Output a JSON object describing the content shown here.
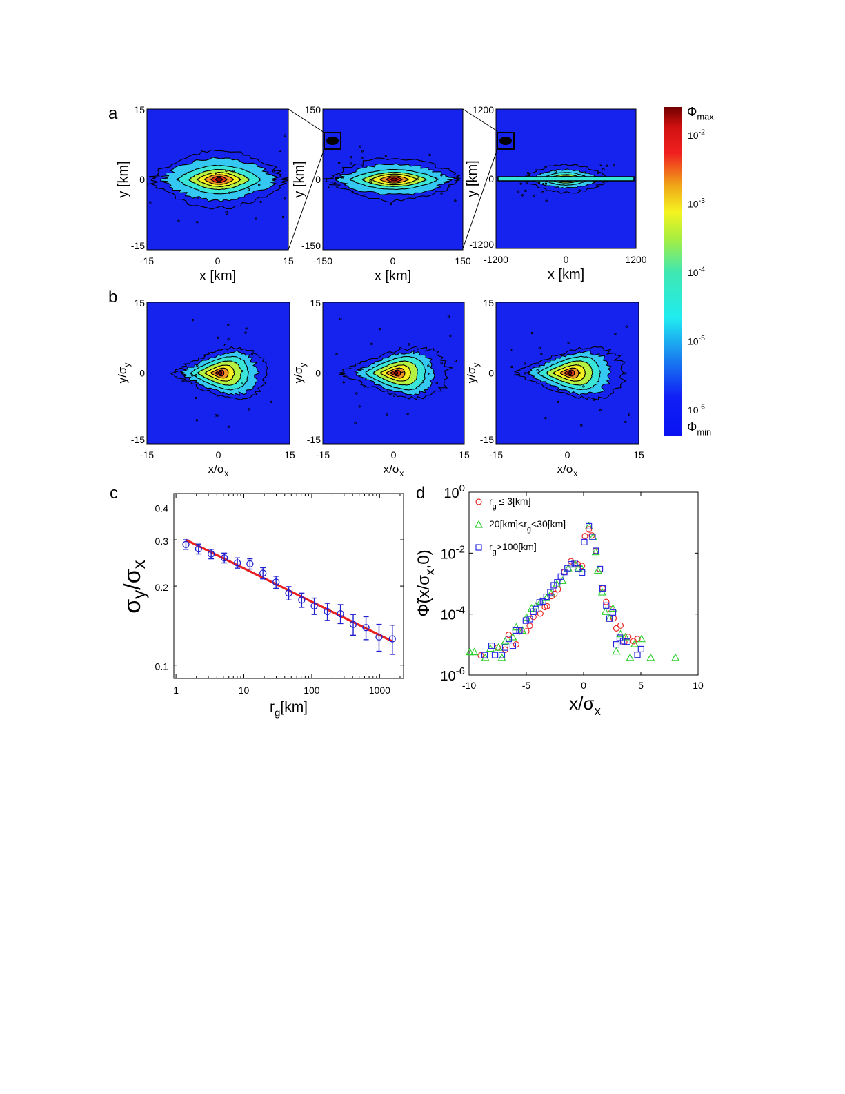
{
  "panel_labels": {
    "a": "a",
    "b": "b",
    "c": "c",
    "d": "d"
  },
  "chart_data": [
    {
      "panel": "a",
      "type": "heatmap",
      "plots": [
        {
          "xlim": [
            -15,
            15
          ],
          "ylim": [
            -15,
            15
          ],
          "xticks": [
            "-15",
            "0",
            "15"
          ],
          "yticks": [
            "15",
            "0",
            "-15"
          ],
          "xlabel": "x [km]",
          "ylabel": "y [km]"
        },
        {
          "xlim": [
            -150,
            150
          ],
          "ylim": [
            -150,
            150
          ],
          "xticks": [
            "-150",
            "0",
            "150"
          ],
          "yticks": [
            "150",
            "0",
            "-150"
          ],
          "xlabel": "x [km]",
          "ylabel": "y [km]",
          "inset": true
        },
        {
          "xlim": [
            -1200,
            1200
          ],
          "ylim": [
            -1200,
            1200
          ],
          "xticks": [
            "-1200",
            "0",
            "1200"
          ],
          "yticks": [
            "1200",
            "0",
            "-1200"
          ],
          "xlabel": "x [km]",
          "ylabel": "y [km]",
          "inset": true
        }
      ]
    },
    {
      "panel": "b",
      "type": "heatmap",
      "plots": [
        {
          "xlim": [
            -15,
            15
          ],
          "ylim": [
            -15,
            15
          ],
          "xticks": [
            "-15",
            "0",
            "15"
          ],
          "yticks": [
            "15",
            "0",
            "-15"
          ],
          "xlabel": {
            "main": "x/σ",
            "sub": "x"
          },
          "ylabel": {
            "main": "y/σ",
            "sub": "y"
          }
        },
        {
          "xlim": [
            -15,
            15
          ],
          "ylim": [
            -15,
            15
          ],
          "xticks": [
            "-15",
            "0",
            "15"
          ],
          "yticks": [
            "15",
            "0",
            "-15"
          ],
          "xlabel": {
            "main": "x/σ",
            "sub": "x"
          },
          "ylabel": {
            "main": "y/σ",
            "sub": "y"
          }
        },
        {
          "xlim": [
            -15,
            15
          ],
          "ylim": [
            -15,
            15
          ],
          "xticks": [
            "-15",
            "0",
            "15"
          ],
          "yticks": [
            "15",
            "0",
            "-15"
          ],
          "xlabel": {
            "main": "x/σ",
            "sub": "x"
          },
          "ylabel": {
            "main": "y/σ",
            "sub": "y"
          }
        }
      ]
    },
    {
      "panel": "colorbar",
      "type": "colorbar",
      "colormap": "jet",
      "scale": "log",
      "max_label": {
        "main": "Φ",
        "sub": "max"
      },
      "min_label": {
        "main": "Φ",
        "sub": "min"
      },
      "ticks": [
        {
          "base": "10",
          "exp": "-2"
        },
        {
          "base": "10",
          "exp": "-3"
        },
        {
          "base": "10",
          "exp": "-4"
        },
        {
          "base": "10",
          "exp": "-5"
        },
        {
          "base": "10",
          "exp": "-6"
        }
      ]
    },
    {
      "panel": "c",
      "type": "scatter",
      "xscale": "log",
      "yscale": "log",
      "xlim": [
        0.93,
        2250
      ],
      "ylim": [
        0.089,
        0.45
      ],
      "xticks": [
        1,
        10,
        100,
        1000
      ],
      "xtick_labels": [
        "1",
        "10",
        "100",
        "1000"
      ],
      "yticks": [
        0.1,
        0.2,
        0.3,
        0.4
      ],
      "ytick_labels": [
        "0.1",
        "0.2",
        "0.3",
        "0.4"
      ],
      "xlabel": {
        "main": "r",
        "sub": "g",
        "rest": "[km]"
      },
      "ylabel": {
        "a": "σ",
        "b": "y",
        "c": "/σ",
        "d": "x"
      },
      "marker_color": "#2020d0",
      "fit_color": "#e82020",
      "x": [
        1.4,
        2.15,
        3.3,
        5.15,
        8.03,
        12.3,
        19.1,
        29.8,
        45.8,
        71.1,
        109,
        170,
        265,
        408,
        630,
        980,
        1540
      ],
      "y": [
        0.288,
        0.277,
        0.265,
        0.256,
        0.245,
        0.243,
        0.224,
        0.207,
        0.188,
        0.177,
        0.168,
        0.16,
        0.157,
        0.143,
        0.139,
        0.128,
        0.126
      ],
      "err": [
        0.012,
        0.012,
        0.011,
        0.011,
        0.011,
        0.011,
        0.011,
        0.011,
        0.011,
        0.011,
        0.012,
        0.012,
        0.013,
        0.013,
        0.014,
        0.015,
        0.016
      ],
      "fit": {
        "x": [
          1.4,
          1560
        ],
        "y": [
          0.3,
          0.123
        ]
      }
    },
    {
      "panel": "d",
      "type": "scatter",
      "yscale": "log",
      "xlim": [
        -10,
        10
      ],
      "ylim": [
        1e-06,
        1
      ],
      "xticks": [
        -10,
        -5,
        0,
        5,
        10
      ],
      "xtick_labels": [
        "-10",
        "-5",
        "0",
        "5",
        "10"
      ],
      "yticks": [
        {
          "value": 1,
          "base": "10",
          "exp": "0"
        },
        {
          "value": 0.01,
          "base": "10",
          "exp": "-2"
        },
        {
          "value": 0.0001,
          "base": "10",
          "exp": "-4"
        },
        {
          "value": 1e-06,
          "base": "10",
          "exp": "-6"
        }
      ],
      "xlabel": {
        "main": "x/σ",
        "sub": "x"
      },
      "ylabel": {
        "main": "Φ̃(x/σ",
        "sub": "x",
        "rest": ",0)"
      },
      "legend_position": "top-left",
      "series": [
        {
          "legend": {
            "a": "r",
            "sub": "g",
            "b": " ≤ 3[km]"
          },
          "marker": "circle",
          "color": "#e82828",
          "x": [
            -8.98,
            -7.5,
            -6.84,
            -6.54,
            -5.88,
            -5.6,
            -5.0,
            -4.7,
            -4.38,
            -3.78,
            -3.38,
            -3.18,
            -2.78,
            -2.54,
            -2.24,
            -1.68,
            -1.1,
            -0.5,
            -0.14,
            0.12,
            0.46,
            0.72,
            1.06,
            1.42,
            1.66,
            1.98,
            2.36,
            2.62,
            2.86,
            3.22,
            3.56,
            3.9,
            4.36,
            4.7
          ],
          "y": [
            4.4e-06,
            8e-06,
            6.8e-06,
            2.1e-05,
            1.01e-05,
            2.7e-05,
            2.7e-05,
            4.1e-05,
            8.1e-05,
            0.000104,
            0.00017,
            0.00018,
            0.00039,
            0.00046,
            0.00065,
            0.0024,
            0.0054,
            0.0043,
            0.0038,
            0.036,
            0.06,
            0.038,
            0.0119,
            0.003,
            0.0007,
            0.00025,
            0.000145,
            7.3e-05,
            3.4e-05,
            4.2e-05,
            1.2e-05,
            1.8e-05,
            1.29e-05,
            1.53e-05
          ]
        },
        {
          "legend": {
            "a": "20[km]<r",
            "sub": "g",
            "b": "<30[km]"
          },
          "marker": "triangle",
          "color": "#30d030",
          "x": [
            -9.94,
            -9.54,
            -8.58,
            -8.14,
            -7.44,
            -7.14,
            -6.84,
            -6.18,
            -5.88,
            -5.34,
            -4.98,
            -4.54,
            -4.18,
            -3.74,
            -3.24,
            -2.84,
            -2.34,
            -1.84,
            -1.34,
            -0.74,
            -0.44,
            -0.14,
            0.46,
            0.82,
            1.06,
            1.26,
            1.62,
            1.9,
            2.26,
            2.56,
            2.86,
            3.22,
            3.66,
            4.06,
            4.46,
            5.06,
            5.86,
            8.02
          ],
          "y": [
            5.7e-06,
            5.7e-06,
            3.7e-06,
            7.4e-06,
            8e-06,
            3.7e-06,
            1.29e-05,
            1.76e-05,
            3.7e-05,
            2.9e-05,
            7.7e-05,
            0.000154,
            0.00018,
            0.00026,
            0.00034,
            0.00048,
            0.00096,
            0.00124,
            0.0032,
            0.0043,
            0.0032,
            0.003,
            0.076,
            0.034,
            0.0109,
            0.0027,
            0.00052,
            0.000119,
            7.3e-05,
            0.000154,
            6e-06,
            2.2e-05,
            1.76e-05,
            3.7e-06,
            1.04e-05,
            1.53e-05,
            3.7e-06,
            3.7e-06
          ]
        },
        {
          "legend": {
            "a": "r",
            "sub": "g",
            "b": ">100[km]"
          },
          "marker": "square",
          "color": "#2828e0",
          "x": [
            -8.64,
            -8.04,
            -7.74,
            -7.14,
            -6.84,
            -6.54,
            -6.18,
            -5.94,
            -5.6,
            -5.04,
            -4.7,
            -4.38,
            -4.14,
            -3.84,
            -3.54,
            -3.24,
            -2.9,
            -2.6,
            -2.3,
            -1.98,
            -1.68,
            -1.4,
            -1.1,
            -0.78,
            -0.5,
            -0.14,
            0.06,
            0.46,
            0.78,
            1.06,
            1.42,
            1.66,
            1.98,
            2.26,
            2.56,
            2.86,
            3.16,
            3.46,
            3.82,
            4.7,
            5.02
          ],
          "y": [
            4.5e-06,
            9.1e-06,
            4.5e-06,
            4.5e-06,
            8e-06,
            1.53e-05,
            9.1e-06,
            2.9e-05,
            2.9e-05,
            6.1e-05,
            6.8e-05,
            0.000119,
            0.000147,
            0.00024,
            0.00026,
            0.00037,
            0.00052,
            0.00088,
            0.0011,
            0.0017,
            0.0024,
            0.0032,
            0.0043,
            0.0047,
            0.0031,
            0.0023,
            0.023,
            0.076,
            0.034,
            0.0119,
            0.003,
            0.0007,
            0.00019,
            7.1e-05,
            0.000113,
            1.01e-05,
            1.67e-05,
            1.29e-05,
            1.24e-05,
            4.6e-06,
            7.1e-06
          ]
        }
      ]
    }
  ]
}
